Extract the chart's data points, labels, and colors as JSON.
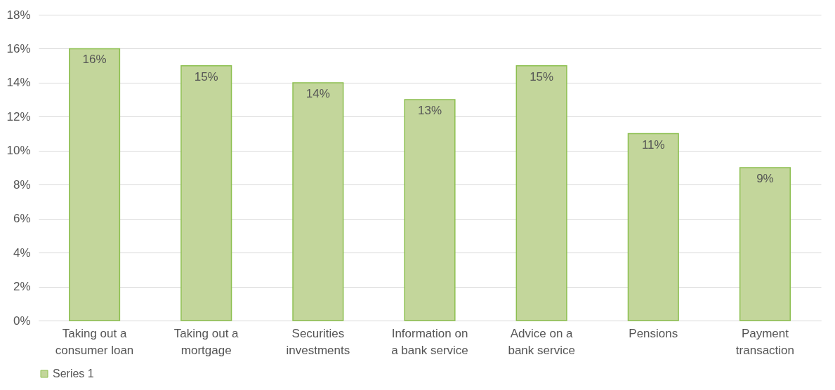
{
  "chart_data": {
    "type": "bar",
    "categories": [
      "Taking out a consumer loan",
      "Taking out a mortgage",
      "Securities investments",
      "Information on a bank service",
      "Advice on a bank service",
      "Pensions",
      "Payment transaction"
    ],
    "series": [
      {
        "name": "Series 1",
        "color": "#c3d69b",
        "values": [
          16,
          15,
          14,
          13,
          15,
          11,
          9
        ],
        "value_labels": [
          "16%",
          "15%",
          "14%",
          "13%",
          "15%",
          "11%",
          "9%"
        ]
      }
    ],
    "ylim": [
      0,
      18
    ],
    "yticks": [
      {
        "value": 0,
        "label": "0%"
      },
      {
        "value": 2,
        "label": "2%"
      },
      {
        "value": 4,
        "label": "4%"
      },
      {
        "value": 6,
        "label": "6%"
      },
      {
        "value": 8,
        "label": "8%"
      },
      {
        "value": 10,
        "label": "10%"
      },
      {
        "value": 12,
        "label": "12%"
      },
      {
        "value": 14,
        "label": "14%"
      },
      {
        "value": 16,
        "label": "16%"
      },
      {
        "value": 18,
        "label": "18%"
      }
    ],
    "grid": "y",
    "legend": "bottom"
  }
}
